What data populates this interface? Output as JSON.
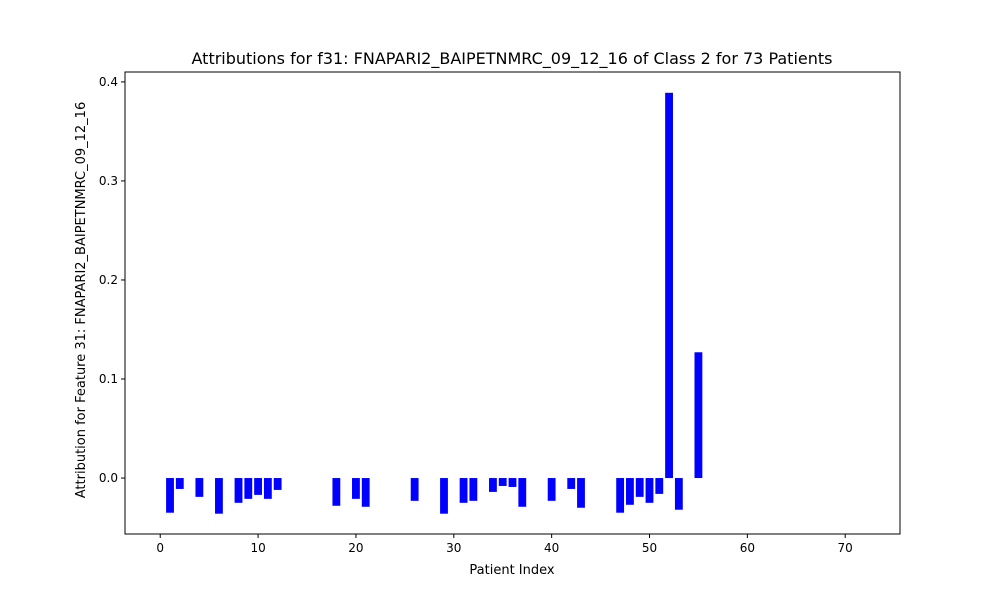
{
  "chart_data": {
    "type": "bar",
    "title": "Attributions for f31: FNAPARI2_BAIPETNMRC_09_12_16 of Class 2 for 73 Patients",
    "xlabel": "Patient Index",
    "ylabel": "Attribution for Feature 31: FNAPARI2_BAIPETNMRC_09_12_16",
    "xlim": [
      -3.6,
      75.6
    ],
    "ylim": [
      -0.0565,
      0.41
    ],
    "xticks": [
      0,
      10,
      20,
      30,
      40,
      50,
      60,
      70
    ],
    "yticks": [
      0.0,
      0.1,
      0.2,
      0.3,
      0.4
    ],
    "xtick_labels": [
      "0",
      "10",
      "20",
      "30",
      "40",
      "50",
      "60",
      "70"
    ],
    "ytick_labels": [
      "0.0",
      "0.1",
      "0.2",
      "0.3",
      "0.4"
    ],
    "grid": false,
    "bar_color": "#0000ff",
    "bar_width": 0.8,
    "x": [
      0,
      1,
      2,
      3,
      4,
      5,
      6,
      7,
      8,
      9,
      10,
      11,
      12,
      13,
      14,
      15,
      16,
      17,
      18,
      19,
      20,
      21,
      22,
      23,
      24,
      25,
      26,
      27,
      28,
      29,
      30,
      31,
      32,
      33,
      34,
      35,
      36,
      37,
      38,
      39,
      40,
      41,
      42,
      43,
      44,
      45,
      46,
      47,
      48,
      49,
      50,
      51,
      52,
      53,
      54,
      55,
      56,
      57,
      58,
      59,
      60,
      61,
      62,
      63,
      64,
      65,
      66,
      67,
      68,
      69,
      70,
      71,
      72
    ],
    "values": [
      0,
      -0.035,
      -0.011,
      0,
      -0.019,
      0,
      -0.036,
      0,
      -0.025,
      -0.021,
      -0.017,
      -0.021,
      -0.012,
      0,
      0,
      0,
      0,
      0,
      -0.028,
      0,
      -0.021,
      -0.029,
      0,
      0,
      0,
      0,
      -0.023,
      0,
      0,
      -0.036,
      0,
      -0.025,
      -0.023,
      0,
      -0.014,
      -0.008,
      -0.009,
      -0.029,
      0,
      0,
      -0.023,
      0,
      -0.011,
      -0.03,
      0,
      0,
      0,
      -0.035,
      -0.027,
      -0.019,
      -0.025,
      -0.016,
      0.389,
      -0.032,
      0,
      0.127,
      0,
      0,
      0,
      0,
      0,
      0,
      0,
      0,
      0,
      0,
      0,
      0,
      0,
      0,
      0,
      0,
      0
    ]
  }
}
